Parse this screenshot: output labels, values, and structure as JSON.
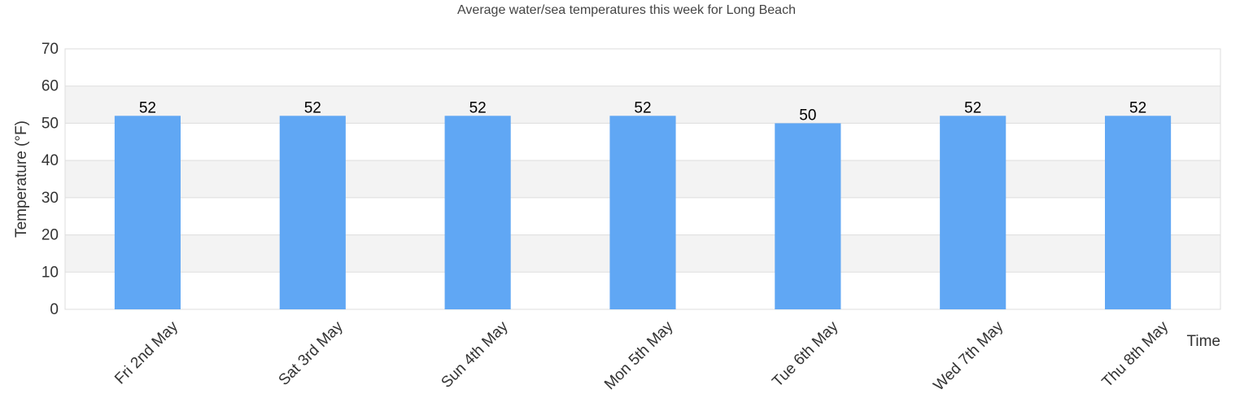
{
  "chart_data": {
    "type": "bar",
    "title": "Average water/sea temperatures this week for Long Beach",
    "xlabel": "Time",
    "ylabel": "Temperature (°F)",
    "categories": [
      "Fri 2nd May",
      "Sat 3rd May",
      "Sun 4th May",
      "Mon 5th May",
      "Tue 6th May",
      "Wed 7th May",
      "Thu 8th May"
    ],
    "values": [
      52,
      52,
      52,
      52,
      50,
      52,
      52
    ],
    "data_labels": [
      "52",
      "52",
      "52",
      "52",
      "50",
      "52",
      "52"
    ],
    "ylim": [
      0,
      70
    ],
    "yticks": [
      0,
      10,
      20,
      30,
      40,
      50,
      60,
      70
    ],
    "grid": true,
    "legend": "none",
    "colors": {
      "bar": "#60a7f4",
      "band": "#f3f3f3",
      "gridline": "#dddddd",
      "plot_border": "#dddddd"
    }
  }
}
